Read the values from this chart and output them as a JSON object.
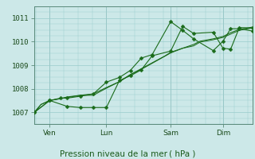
{
  "bg_color": "#cce8e8",
  "grid_color": "#99cccc",
  "line_color": "#1a6b1a",
  "ylim": [
    1006.5,
    1011.5
  ],
  "yticks": [
    1007,
    1008,
    1009,
    1010,
    1011
  ],
  "xlabel": "Pression niveau de la mer ( hPa )",
  "xtick_labels": [
    "Ven",
    "Lun",
    "Sam",
    "Dim"
  ],
  "xtick_pos": [
    0.07,
    0.33,
    0.625,
    0.865
  ],
  "line1_x": [
    0.0,
    0.03,
    0.07,
    0.12,
    0.15,
    0.21,
    0.27,
    0.33,
    0.39,
    0.44,
    0.49,
    0.54,
    0.6,
    0.625,
    0.68,
    0.73,
    0.76,
    0.82,
    0.865,
    0.9,
    0.94,
    1.0
  ],
  "line1_y": [
    1007.0,
    1007.33,
    1007.5,
    1007.58,
    1007.65,
    1007.72,
    1007.78,
    1008.05,
    1008.3,
    1008.6,
    1008.85,
    1009.1,
    1009.4,
    1009.55,
    1009.72,
    1009.88,
    1010.02,
    1010.12,
    1010.22,
    1010.38,
    1010.52,
    1010.62
  ],
  "line2_x": [
    0.0,
    0.07,
    0.15,
    0.21,
    0.27,
    0.33,
    0.39,
    0.44,
    0.49,
    0.54,
    0.625,
    0.68,
    0.73,
    0.82,
    0.865,
    0.9,
    0.94,
    1.0
  ],
  "line2_y": [
    1007.0,
    1007.5,
    1007.25,
    1007.2,
    1007.2,
    1007.2,
    1008.35,
    1008.55,
    1008.8,
    1009.4,
    1009.6,
    1010.65,
    1010.35,
    1010.4,
    1009.72,
    1009.68,
    1010.6,
    1010.58
  ],
  "line3_x": [
    0.0,
    0.07,
    0.12,
    0.15,
    0.21,
    0.27,
    0.33,
    0.39,
    0.44,
    0.49,
    0.54,
    0.625,
    0.68,
    0.73,
    0.82,
    0.865,
    0.9,
    0.94,
    1.0
  ],
  "line3_y": [
    1007.0,
    1007.5,
    1007.6,
    1007.6,
    1007.68,
    1007.78,
    1008.28,
    1008.48,
    1008.78,
    1009.3,
    1009.45,
    1010.85,
    1010.48,
    1010.12,
    1009.62,
    1010.02,
    1010.55,
    1010.55,
    1010.45
  ],
  "line4_x": [
    0.0,
    0.03,
    0.07,
    0.21,
    0.27,
    0.33,
    0.39,
    0.44,
    0.49,
    0.54,
    0.625,
    0.68,
    0.73,
    0.76,
    0.82,
    0.865,
    0.9,
    0.94,
    1.0
  ],
  "line4_y": [
    1007.0,
    1007.33,
    1007.5,
    1007.72,
    1007.72,
    1008.02,
    1008.3,
    1008.6,
    1008.82,
    1009.08,
    1009.52,
    1009.72,
    1009.82,
    1009.98,
    1010.08,
    1010.18,
    1010.32,
    1010.48,
    1010.58
  ]
}
